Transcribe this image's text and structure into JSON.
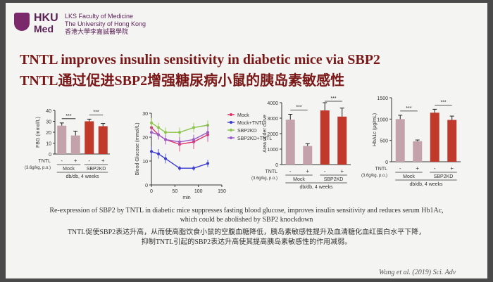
{
  "header": {
    "hku": "HKU",
    "med": "Med",
    "faculty_line1": "LKS Faculty of Medicine",
    "faculty_line2": "The University of Hong Kong",
    "faculty_line3": "香港大學李嘉誠醫學院"
  },
  "slide": {
    "title_en": "TNTL improves insulin sensitivity in diabetic mice via SBP2",
    "title_zh": "TNTL通过促进SBP2增强糖尿病小鼠的胰岛素敏感性",
    "caption_en_1": "Re-expression of SBP2 by TNTL in diabetic mice suppresses fasting blood glucose, improves insulin sensitivity and reduces serum Hb1Ac,",
    "caption_en_2": "which could be abolished by SBP2 knockdown",
    "caption_zh_1": "TNTL促使SBP2表达升高，从而使高脂饮食小鼠的空腹血糖降低，胰岛素敏感性提升及血清糖化血红蛋白水平下降，",
    "caption_zh_2": "抑制TNTL引起的SBP2表达升高使其提高胰岛素敏感性的作用减弱。",
    "citation": "Wang et al. (2019) Sci. Adv"
  },
  "colors": {
    "mock": "#c4a2ac",
    "sbp2kd": "#c0392b",
    "line_mock": "#e0306a",
    "line_mock_tntl": "#3a3ad0",
    "line_sbp2kd": "#8ac44a",
    "line_sbp2kd_tntl": "#9a5ac8"
  },
  "chart_data": [
    {
      "type": "bar",
      "ylabel": "FBG (mmol/L)",
      "ylim": [
        0,
        40
      ],
      "yticks": [
        "0",
        "10",
        "20",
        "30",
        "40"
      ],
      "row_label": "TNTL",
      "row_sublabel": "(3.6g/kg, p.o.)",
      "treatment": [
        "-",
        "+",
        "-",
        "+"
      ],
      "groups": [
        "Mock",
        "SBP2KD"
      ],
      "footer": "db/db, 4 weeks",
      "values": [
        26,
        17,
        30,
        25.5
      ],
      "errors": [
        2.5,
        4,
        2,
        2.5
      ],
      "significance": [
        "***",
        "***"
      ]
    },
    {
      "type": "line",
      "ylabel": "Blood Glucose (mmol/L)",
      "xlabel": "min",
      "xlim": [
        0,
        150
      ],
      "ylim": [
        0,
        30
      ],
      "xticks": [
        "0",
        "50",
        "100",
        "150"
      ],
      "yticks": [
        "0",
        "10",
        "20",
        "30"
      ],
      "x": [
        0,
        15,
        30,
        60,
        90,
        120
      ],
      "series": [
        {
          "name": "Mock",
          "values": [
            24,
            21,
            19,
            17,
            18,
            21
          ],
          "errors": [
            2,
            2,
            2,
            3,
            3,
            3
          ]
        },
        {
          "name": "Mock+TNTL",
          "values": [
            14,
            13,
            11,
            7,
            7,
            9
          ],
          "errors": [
            2,
            2,
            2,
            1,
            1,
            1.5
          ]
        },
        {
          "name": "SBP2KD",
          "values": [
            26,
            24,
            22,
            22,
            24,
            25
          ],
          "errors": [
            2,
            2,
            2,
            2,
            2,
            2
          ]
        },
        {
          "name": "SBP2KD+TNTL",
          "values": [
            22,
            21,
            19,
            18,
            19,
            22
          ],
          "errors": [
            2,
            2,
            2,
            2,
            2,
            3
          ]
        }
      ]
    },
    {
      "type": "bar",
      "ylabel": "Area under curve",
      "ylim": [
        0,
        4000
      ],
      "yticks": [
        "0",
        "1000",
        "2000",
        "3000",
        "4000"
      ],
      "row_label": "TNTL",
      "row_sublabel": "(3.6g/kg, p.o.)",
      "treatment": [
        "-",
        "+",
        "-",
        "+"
      ],
      "groups": [
        "Mock",
        "SBP2KD"
      ],
      "footer": "db/db, 4 weeks",
      "values": [
        2900,
        1200,
        3500,
        3100
      ],
      "errors": [
        350,
        150,
        500,
        550
      ],
      "significance": [
        "***",
        "***"
      ]
    },
    {
      "type": "bar",
      "ylabel": "HbA1c (μg/mL)",
      "ylim": [
        0,
        1500
      ],
      "yticks": [
        "0",
        "500",
        "1000",
        "1500"
      ],
      "row_label": "TNTL",
      "row_sublabel": "(3.6g/kg, p.o.)",
      "treatment": [
        "-",
        "+",
        "-",
        "+"
      ],
      "groups": [
        "Mock",
        "SBP2KD"
      ],
      "footer": "db/db, 4 weeks",
      "values": [
        1000,
        480,
        1150,
        980
      ],
      "errors": [
        90,
        30,
        80,
        90
      ],
      "significance": [
        "***",
        "***"
      ]
    }
  ]
}
